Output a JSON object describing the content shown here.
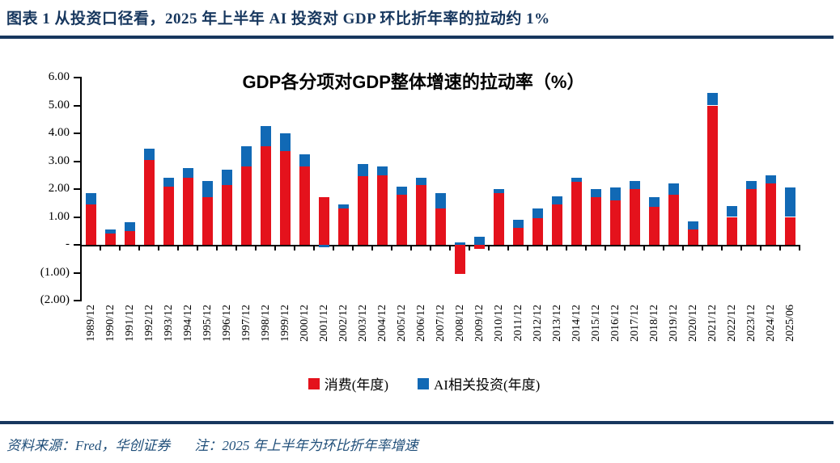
{
  "header": {
    "title": "图表 1  从投资口径看，2025 年上半年 AI 投资对 GDP 环比折年率的拉动约 1%"
  },
  "chart_data": {
    "type": "bar",
    "stacked": true,
    "title": "GDP各分项对GDP整体增速的拉动率（%）",
    "categories": [
      "1989/12",
      "1990/12",
      "1991/12",
      "1992/12",
      "1993/12",
      "1994/12",
      "1995/12",
      "1996/12",
      "1997/12",
      "1998/12",
      "1999/12",
      "2000/12",
      "2001/12",
      "2002/12",
      "2003/12",
      "2004/12",
      "2005/12",
      "2006/12",
      "2007/12",
      "2008/12",
      "2009/12",
      "2010/12",
      "2011/12",
      "2012/12",
      "2013/12",
      "2014/12",
      "2015/12",
      "2016/12",
      "2017/12",
      "2018/12",
      "2019/12",
      "2020/12",
      "2021/12",
      "2022/12",
      "2023/12",
      "2024/12",
      "2025/06"
    ],
    "series": [
      {
        "name": "消费(年度)",
        "color": "#E4121C",
        "values": [
          1.45,
          0.4,
          0.5,
          3.05,
          2.1,
          2.4,
          1.7,
          2.15,
          2.8,
          3.55,
          3.35,
          2.8,
          1.7,
          1.3,
          2.45,
          2.5,
          1.8,
          2.15,
          1.3,
          -1.05,
          -0.15,
          1.85,
          0.6,
          0.95,
          1.45,
          2.25,
          1.7,
          1.6,
          2.0,
          1.35,
          1.8,
          0.55,
          5.0,
          1.0,
          2.0,
          2.2,
          1.0
        ]
      },
      {
        "name": "AI相关投资(年度)",
        "color": "#1169B5",
        "values": [
          0.4,
          0.15,
          0.3,
          0.4,
          0.3,
          0.35,
          0.6,
          0.55,
          0.75,
          0.7,
          0.65,
          0.45,
          -0.1,
          0.15,
          0.45,
          0.3,
          0.3,
          0.25,
          0.55,
          0.1,
          0.3,
          0.15,
          0.3,
          0.35,
          0.3,
          0.15,
          0.3,
          0.45,
          0.3,
          0.35,
          0.4,
          0.3,
          0.45,
          0.4,
          0.3,
          0.3,
          1.05
        ]
      }
    ],
    "y_axis": {
      "min": -2,
      "max": 6,
      "tick_values": [
        6,
        5,
        4,
        3,
        2,
        1,
        0,
        -1,
        -2
      ],
      "tick_labels": [
        "6.00",
        "5.00",
        "4.00",
        "3.00",
        "2.00",
        "1.00",
        "-",
        "(1.00)",
        "(2.00)"
      ]
    },
    "legend_position": "bottom",
    "grid": false
  },
  "footer": {
    "source": "资料来源：Fred，华创证券",
    "note": "注：2025 年上半年为环比折年率增速"
  },
  "colors": {
    "accent_navy": "#17375E",
    "footer_navy": "#1F4E79",
    "consumption_red": "#E4121C",
    "ai_blue": "#1169B5",
    "axis_black": "#000000"
  }
}
